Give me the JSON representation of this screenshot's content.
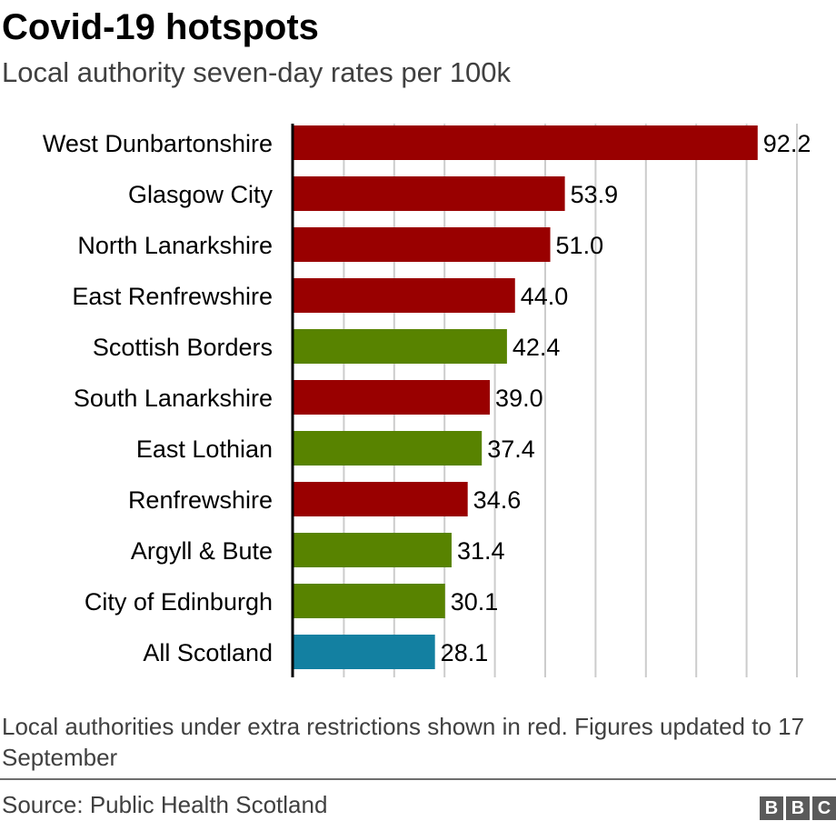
{
  "chart_data": {
    "type": "bar",
    "orientation": "horizontal",
    "title": "Covid-19 hotspots",
    "subtitle": "Local authority seven-day rates per 100k",
    "xlabel": "",
    "ylabel": "",
    "xlim": [
      0,
      100
    ],
    "grid": true,
    "gridline_step": 10,
    "categories": [
      "West Dunbartonshire",
      "Glasgow City",
      "North Lanarkshire",
      "East Renfrewshire",
      "Scottish Borders",
      "South Lanarkshire",
      "East Lothian",
      "Renfrewshire",
      "Argyll & Bute",
      "City of Edinburgh",
      "All Scotland"
    ],
    "values": [
      92.2,
      53.9,
      51.0,
      44.0,
      42.4,
      39.0,
      37.4,
      34.6,
      31.4,
      30.1,
      28.1
    ],
    "value_labels": [
      "92.2",
      "53.9",
      "51.0",
      "44.0",
      "42.4",
      "39.0",
      "37.4",
      "34.6",
      "31.4",
      "30.1",
      "28.1"
    ],
    "groups": [
      "restricted",
      "restricted",
      "restricted",
      "restricted",
      "other",
      "restricted",
      "other",
      "restricted",
      "other",
      "other",
      "national"
    ],
    "colors": {
      "restricted": "#990000",
      "other": "#588300",
      "national": "#1380a1",
      "grid": "#cccccc",
      "axis": "#000000"
    }
  },
  "note": "Local authorities under extra restrictions shown in red. Figures updated to 17 September",
  "source": "Source: Public Health Scotland",
  "logo": {
    "text": [
      "B",
      "B",
      "C"
    ],
    "icon": "bbc-logo"
  }
}
